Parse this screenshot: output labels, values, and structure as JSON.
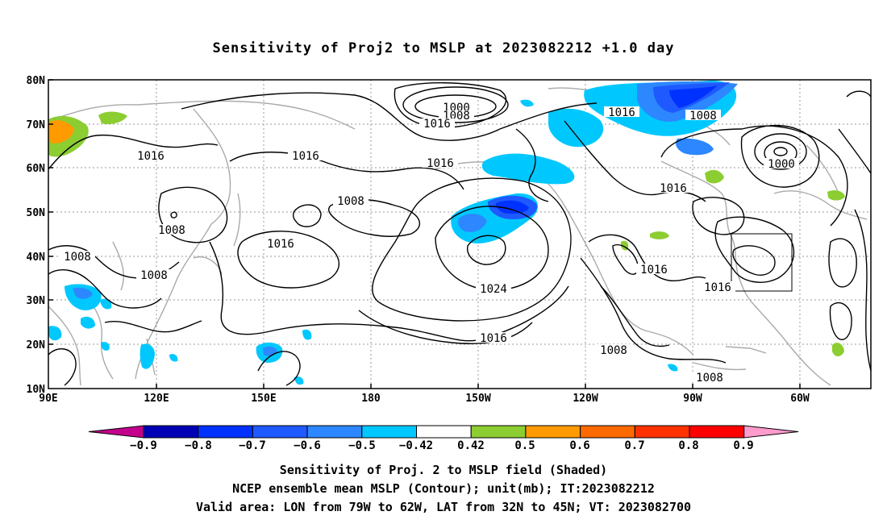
{
  "title": "Sensitivity of Proj2 to MSLP at 2023082212 +1.0 day",
  "lat_labels": [
    "80N",
    "70N",
    "60N",
    "50N",
    "40N",
    "30N",
    "20N",
    "10N"
  ],
  "lon_labels": [
    "90E",
    "120E",
    "150E",
    "180",
    "150W",
    "120W",
    "90W",
    "60W"
  ],
  "contour_labels": [
    {
      "text": "1000"
    },
    {
      "text": "1008"
    },
    {
      "text": "1016"
    },
    {
      "text": "1016"
    },
    {
      "text": "1008"
    },
    {
      "text": "1016"
    },
    {
      "text": "1016"
    },
    {
      "text": "1008"
    },
    {
      "text": "1016"
    },
    {
      "text": "1000"
    },
    {
      "text": "1016"
    },
    {
      "text": "1008"
    },
    {
      "text": "1008"
    },
    {
      "text": "1016"
    },
    {
      "text": "1008"
    },
    {
      "text": "1008"
    },
    {
      "text": "1024"
    },
    {
      "text": "1016"
    },
    {
      "text": "1016"
    },
    {
      "text": "1016"
    },
    {
      "text": "1008"
    },
    {
      "text": "1008"
    }
  ],
  "colorbar": {
    "labels": [
      "−0.9",
      "−0.8",
      "−0.7",
      "−0.6",
      "−0.5",
      "−0.42",
      "0.42",
      "0.5",
      "0.6",
      "0.7",
      "0.8",
      "0.9"
    ],
    "colors": [
      "#c3008c",
      "#0000b4",
      "#0032ff",
      "#1e5aff",
      "#2d87ff",
      "#00c8ff",
      "#ffffff",
      "#8ccd32",
      "#ff9b00",
      "#ff6a00",
      "#ff3200",
      "#ff0000",
      "#ff9bcd"
    ]
  },
  "captions": [
    "Sensitivity of Proj. 2 to MSLP field (Shaded)",
    "NCEP ensemble mean MSLP (Contour); unit(mb); IT:2023082212",
    "Valid area: LON from 79W to 62W, LAT from 32N to 45N; VT: 2023082700"
  ]
}
